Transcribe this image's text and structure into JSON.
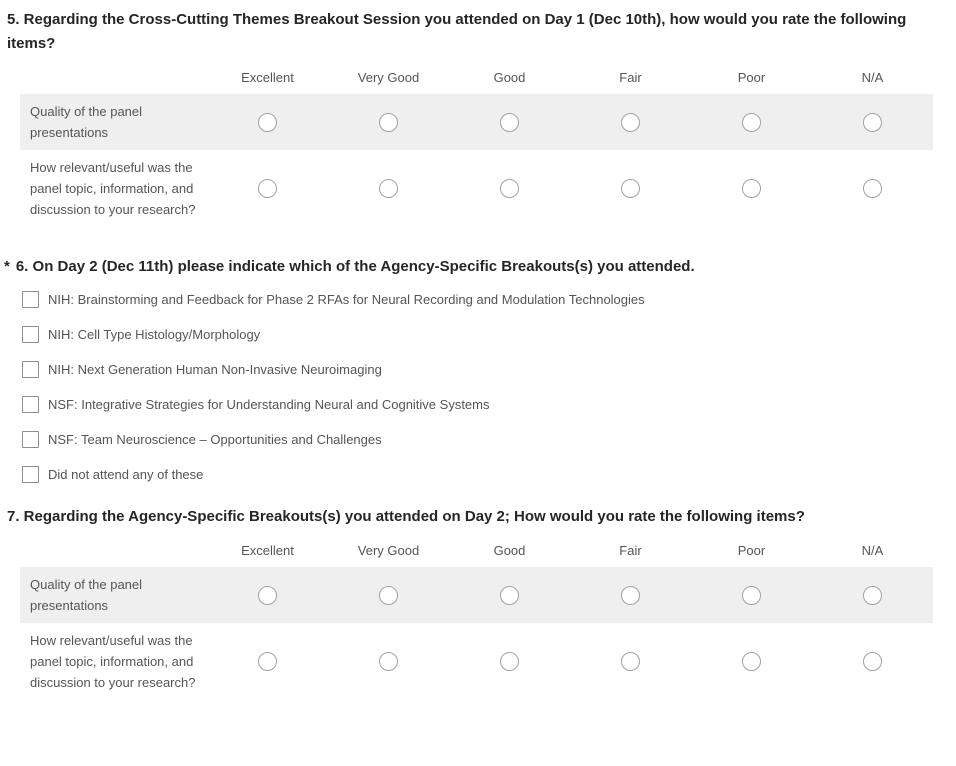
{
  "colors": {
    "title_text": "#262626",
    "body_text": "#555555",
    "row_shade": "#efefef",
    "radio_border": "#a1a1a1",
    "checkbox_border": "#8e8e8e"
  },
  "rating_scale": [
    "Excellent",
    "Very Good",
    "Good",
    "Fair",
    "Poor",
    "N/A"
  ],
  "q5": {
    "title": "5. Regarding the Cross-Cutting Themes Breakout Session you attended on Day 1 (Dec 10th), how would you rate the following items?",
    "rows": [
      "Quality of the panel presentations",
      "How relevant/useful was the panel topic, information, and discussion to your research?"
    ]
  },
  "q6": {
    "required_marker": "*",
    "title": "6. On Day 2 (Dec 11th) please indicate which of the Agency-Specific Breakouts(s) you attended.",
    "options": [
      "NIH: Brainstorming and Feedback for Phase 2 RFAs for Neural Recording and Modulation Technologies",
      "NIH: Cell Type Histology/Morphology",
      "NIH: Next Generation Human Non-Invasive Neuroimaging",
      "NSF: Integrative Strategies for Understanding Neural and Cognitive Systems",
      "NSF: Team Neuroscience – Opportunities and Challenges",
      "Did not attend any of these"
    ]
  },
  "q7": {
    "title": "7. Regarding the Agency-Specific Breakouts(s) you attended on Day 2; How would you rate the following items?",
    "rows": [
      "Quality of the panel presentations",
      "How relevant/useful was the panel topic, information, and discussion to your research?"
    ]
  }
}
